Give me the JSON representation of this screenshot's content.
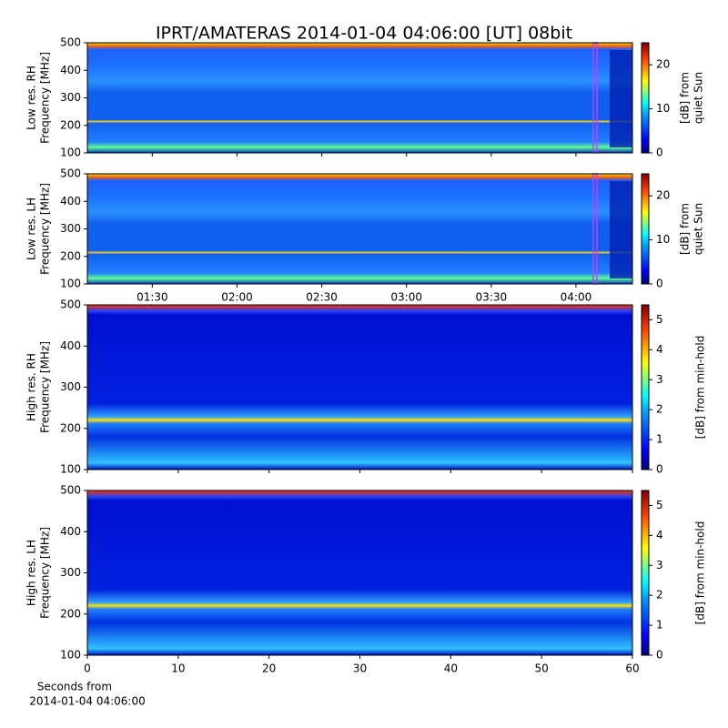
{
  "chart_data": [
    {
      "type": "heatmap",
      "title": "IPRT/AMATERAS 2014-01-04 04:06:00 [UT]   08bit",
      "y_label": [
        "Low res. RH",
        "Frequency [MHz]"
      ],
      "ylim": [
        100,
        500
      ],
      "yticks": [
        100,
        200,
        300,
        400,
        500
      ],
      "clim": [
        0,
        25
      ],
      "cticks": [
        0,
        10,
        20
      ],
      "colorbar_label": [
        "[dB] from",
        "quiet Sun"
      ]
    },
    {
      "type": "heatmap",
      "y_label": [
        "Low res. LH",
        "Frequency [MHz]"
      ],
      "ylim": [
        100,
        500
      ],
      "yticks": [
        100,
        200,
        300,
        400,
        500
      ],
      "xlim": [
        67,
        260
      ],
      "xticks": [
        {
          "value": 90,
          "label": "01:30"
        },
        {
          "value": 120,
          "label": "02:00"
        },
        {
          "value": 150,
          "label": "02:30"
        },
        {
          "value": 180,
          "label": "03:00"
        },
        {
          "value": 210,
          "label": "03:30"
        },
        {
          "value": 240,
          "label": "04:00"
        }
      ],
      "clim": [
        0,
        25
      ],
      "cticks": [
        0,
        10,
        20
      ],
      "colorbar_label": [
        "[dB] from",
        "quiet Sun"
      ]
    },
    {
      "type": "heatmap",
      "y_label": [
        "High res. RH",
        "Frequency [MHz]"
      ],
      "ylim": [
        100,
        500
      ],
      "yticks": [
        100,
        200,
        300,
        400,
        500
      ],
      "clim": [
        0,
        5.5
      ],
      "cticks": [
        0,
        1,
        2,
        3,
        4,
        5
      ],
      "colorbar_label": [
        "[dB] from min-hold"
      ]
    },
    {
      "type": "heatmap",
      "y_label": [
        "High res. LH",
        "Frequency [MHz]"
      ],
      "ylim": [
        100,
        500
      ],
      "yticks": [
        100,
        200,
        300,
        400,
        500
      ],
      "xlim": [
        0,
        60
      ],
      "xticks": [
        0,
        10,
        20,
        30,
        40,
        50,
        60
      ],
      "x_label": [
        "Seconds from",
        "2014-01-04 04:06:00"
      ],
      "clim": [
        0,
        5.5
      ],
      "cticks": [
        0,
        1,
        2,
        3,
        4,
        5
      ],
      "colorbar_label": [
        "[dB] from min-hold"
      ]
    }
  ]
}
